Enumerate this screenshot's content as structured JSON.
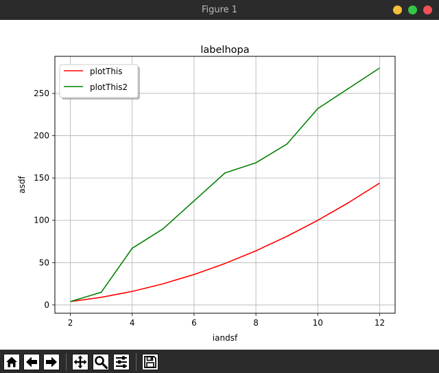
{
  "window": {
    "title": "Figure 1"
  },
  "window_buttons": [
    {
      "name": "minimize-button",
      "color": "#f4bf3a"
    },
    {
      "name": "maximize-button",
      "color": "#32c748"
    },
    {
      "name": "close-button",
      "color": "#f25056"
    }
  ],
  "toolbar": {
    "buttons": [
      {
        "name": "home-button",
        "icon": "home-icon"
      },
      {
        "name": "back-button",
        "icon": "arrow-left-icon"
      },
      {
        "name": "forward-button",
        "icon": "arrow-right-icon"
      },
      {
        "name": "pan-button",
        "icon": "move-icon"
      },
      {
        "name": "zoom-button",
        "icon": "magnifier-icon"
      },
      {
        "name": "configure-subplots-button",
        "icon": "sliders-icon"
      },
      {
        "name": "save-button",
        "icon": "floppy-disk-icon"
      }
    ]
  },
  "chart_data": {
    "type": "line",
    "title": "labelhopa",
    "xlabel": "iandsf",
    "ylabel": "asdf",
    "xlim": [
      1.5,
      12.5
    ],
    "ylim": [
      -9.8,
      293.8
    ],
    "xticks": [
      2,
      4,
      6,
      8,
      10,
      12
    ],
    "yticks": [
      0,
      50,
      100,
      150,
      200,
      250
    ],
    "grid": true,
    "legend_position": "top-left",
    "x": [
      2,
      3,
      4,
      5,
      6,
      7,
      8,
      9,
      10,
      11,
      12
    ],
    "series": [
      {
        "name": "plotThis",
        "color": "#ff0000",
        "values": [
          4,
          9,
          16,
          25,
          36,
          49,
          64,
          81,
          100,
          121,
          144
        ]
      },
      {
        "name": "plotThis2",
        "color": "#008000",
        "values": [
          4,
          15,
          67,
          90,
          123,
          156,
          168,
          190,
          232,
          256,
          280
        ]
      }
    ]
  }
}
